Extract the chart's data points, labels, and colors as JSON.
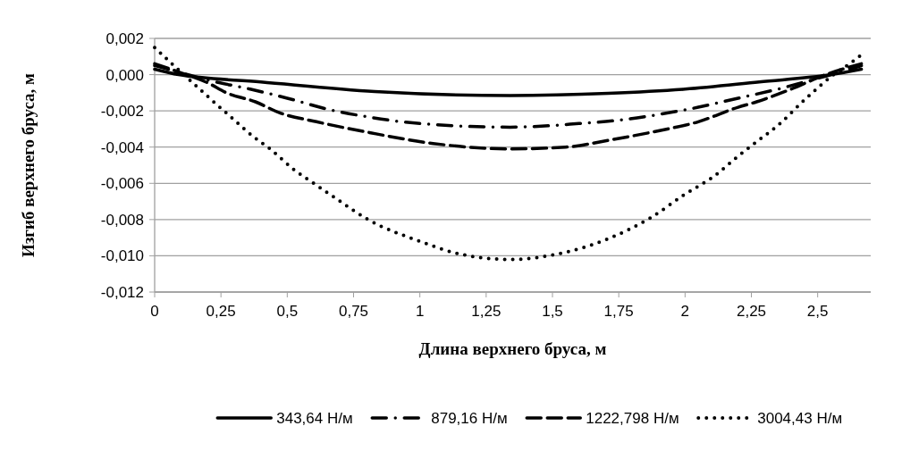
{
  "chart_data": {
    "type": "line",
    "xlabel": "Длина верхнего бруса, м",
    "ylabel": "Изгиб верхнего бруса, м",
    "xlim": [
      0,
      2.7
    ],
    "ylim": [
      -0.012,
      0.002
    ],
    "xticks": [
      0,
      {
        "value": 0.25,
        "label": "0,25"
      },
      {
        "value": 0.5,
        "label": "0,5"
      },
      {
        "value": 0.75,
        "label": "0,75"
      },
      1,
      {
        "value": 1.25,
        "label": "1,25"
      },
      {
        "value": 1.5,
        "label": "1,5"
      },
      {
        "value": 1.75,
        "label": "1,75"
      },
      2,
      {
        "value": 2.25,
        "label": "2,25"
      },
      {
        "value": 2.5,
        "label": "2,5"
      }
    ],
    "yticks": [
      {
        "value": 0.002,
        "label": "0,002"
      },
      {
        "value": 0,
        "label": "0,000"
      },
      {
        "value": -0.002,
        "label": "-0,002"
      },
      {
        "value": -0.004,
        "label": "-0,004"
      },
      {
        "value": -0.006,
        "label": "-0,006"
      },
      {
        "value": -0.008,
        "label": "-0,008"
      },
      {
        "value": -0.01,
        "label": "-0,010"
      },
      {
        "value": -0.012,
        "label": "-0,012"
      }
    ],
    "grid": "y",
    "legend": "bottom",
    "marker": "none",
    "series": [
      {
        "name": "343,64 Н/м",
        "color": "#000000",
        "line_style": "solid",
        "x": [
          0,
          0.09,
          0.4,
          0.83,
          1.34,
          1.71,
          2.0,
          2.28,
          2.55,
          2.665
        ],
        "values": [
          0.0003,
          0,
          -0.0004,
          -0.00093,
          -0.00115,
          -0.00103,
          -0.0008,
          -0.0004,
          0,
          0.0003
        ]
      },
      {
        "name": "879,16 Н/м",
        "color": "#000000",
        "line_style": "dashdot",
        "x": [
          0,
          0.1,
          0.2,
          0.36,
          0.5,
          0.65,
          0.79,
          1.0,
          1.34,
          1.6,
          1.76,
          1.9,
          2.05,
          2.2,
          2.35,
          2.5,
          2.6,
          2.665
        ],
        "values": [
          0.0005,
          0.0001,
          -0.0003,
          -0.0008,
          -0.0013,
          -0.0019,
          -0.0023,
          -0.0027,
          -0.0029,
          -0.0027,
          -0.0025,
          -0.0022,
          -0.0018,
          -0.0013,
          -0.0008,
          -0.0002,
          0.0002,
          0.0005
        ]
      },
      {
        "name": "1222,798 Н/м",
        "color": "#000000",
        "line_style": "dashed",
        "x": [
          0,
          0.1,
          0.2,
          0.27,
          0.38,
          0.47,
          0.61,
          0.81,
          1.05,
          1.34,
          1.55,
          1.72,
          1.9,
          2.05,
          2.2,
          2.27,
          2.4,
          2.53,
          2.665
        ],
        "values": [
          0.0006,
          0.0001,
          -0.00045,
          -0.001,
          -0.0015,
          -0.0021,
          -0.0026,
          -0.0032,
          -0.0038,
          -0.0041,
          -0.004,
          -0.0036,
          -0.0031,
          -0.0026,
          -0.0018,
          -0.0015,
          -0.0008,
          0,
          0.0006
        ]
      },
      {
        "name": "3004,43 Н/м",
        "color": "#000000",
        "line_style": "dotted",
        "x": [
          0,
          0.065,
          0.125,
          0.215,
          0.3,
          0.37,
          0.435,
          0.53,
          0.6,
          0.7,
          0.805,
          1.0,
          1.15,
          1.34,
          1.55,
          1.72,
          1.87,
          2.0,
          2.11,
          2.2,
          2.27,
          2.35,
          2.45,
          2.56,
          2.62,
          2.665
        ],
        "values": [
          0.0015,
          0.0006,
          -0.0002,
          -0.0014,
          -0.0025,
          -0.0034,
          -0.0041,
          -0.0053,
          -0.006,
          -0.007,
          -0.008,
          -0.0092,
          -0.0099,
          -0.0102,
          -0.0098,
          -0.009,
          -0.0079,
          -0.0066,
          -0.0056,
          -0.0045,
          -0.0037,
          -0.0028,
          -0.0014,
          0,
          0.0006,
          0.0011
        ]
      }
    ]
  }
}
